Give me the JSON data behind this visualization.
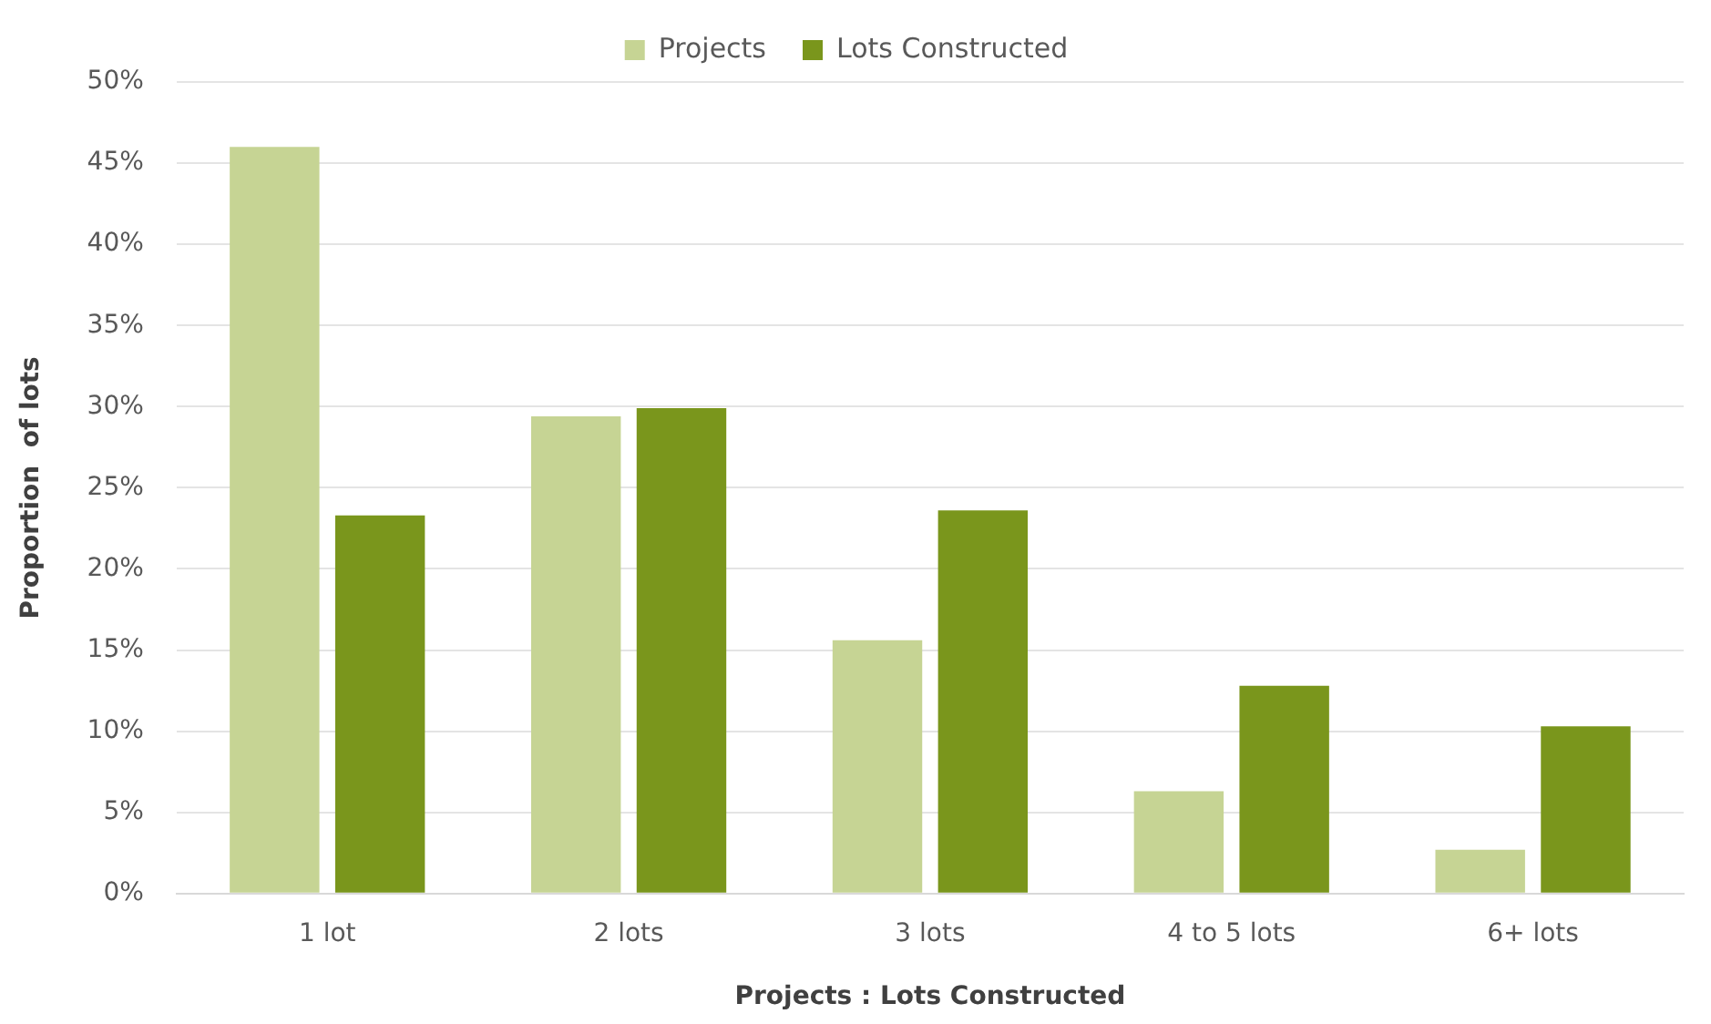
{
  "chart_data": {
    "type": "bar",
    "xlabel": "Projects : Lots Constructed",
    "ylabel": "Proportion  of lots",
    "categories": [
      "1 lot",
      "2 lots",
      "3 lots",
      "4 to 5 lots",
      "6+ lots"
    ],
    "series": [
      {
        "name": "Projects",
        "color": "#c6d494",
        "values": [
          46.0,
          29.4,
          15.6,
          6.3,
          2.7
        ]
      },
      {
        "name": "Lots Constructed",
        "color": "#7a961c",
        "values": [
          23.3,
          29.9,
          23.6,
          12.8,
          10.3
        ]
      }
    ],
    "ylim": [
      0,
      50
    ],
    "yticks": [
      {
        "value": 0,
        "label": "0%"
      },
      {
        "value": 5,
        "label": "5%"
      },
      {
        "value": 10,
        "label": "10%"
      },
      {
        "value": 15,
        "label": "15%"
      },
      {
        "value": 20,
        "label": "20%"
      },
      {
        "value": 25,
        "label": "25%"
      },
      {
        "value": 30,
        "label": "30%"
      },
      {
        "value": 35,
        "label": "35%"
      },
      {
        "value": 40,
        "label": "40%"
      },
      {
        "value": 45,
        "label": "45%"
      },
      {
        "value": 50,
        "label": "50%"
      }
    ],
    "grid": "y",
    "legend": "top"
  }
}
